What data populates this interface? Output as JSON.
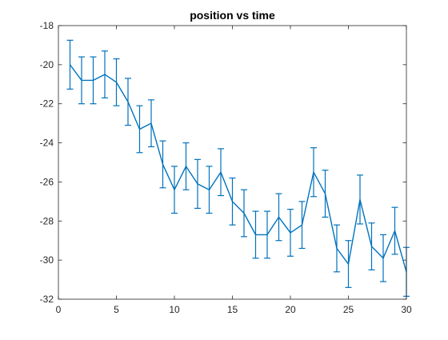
{
  "chart_data": {
    "type": "line",
    "title": "position vs time",
    "xlabel": "",
    "ylabel": "",
    "xlim": [
      0,
      30
    ],
    "ylim": [
      -32,
      -18
    ],
    "xticks": [
      0,
      5,
      10,
      15,
      20,
      25,
      30
    ],
    "yticks": [
      -32,
      -30,
      -28,
      -26,
      -24,
      -22,
      -20,
      -18
    ],
    "grid": false,
    "box": true,
    "series": [
      {
        "color": "#0072BD",
        "x": [
          1,
          2,
          3,
          4,
          5,
          6,
          7,
          8,
          9,
          10,
          11,
          12,
          13,
          14,
          15,
          16,
          17,
          18,
          19,
          20,
          21,
          22,
          23,
          24,
          25,
          26,
          27,
          28,
          29,
          30
        ],
        "y": [
          -20.0,
          -20.8,
          -20.8,
          -20.5,
          -20.9,
          -21.9,
          -23.3,
          -23.0,
          -25.1,
          -26.4,
          -25.2,
          -26.1,
          -26.4,
          -25.5,
          -27.0,
          -27.6,
          -28.7,
          -28.7,
          -27.8,
          -28.6,
          -28.2,
          -25.5,
          -26.6,
          -29.4,
          -30.2,
          -26.9,
          -29.3,
          -29.9,
          -28.5,
          -30.6
        ],
        "err": [
          1.25,
          1.2,
          1.2,
          1.2,
          1.2,
          1.2,
          1.2,
          1.2,
          1.2,
          1.2,
          1.2,
          1.25,
          1.2,
          1.2,
          1.2,
          1.2,
          1.2,
          1.2,
          1.2,
          1.2,
          1.2,
          1.25,
          1.2,
          1.2,
          1.2,
          1.25,
          1.2,
          1.2,
          1.2,
          1.25
        ]
      }
    ]
  }
}
